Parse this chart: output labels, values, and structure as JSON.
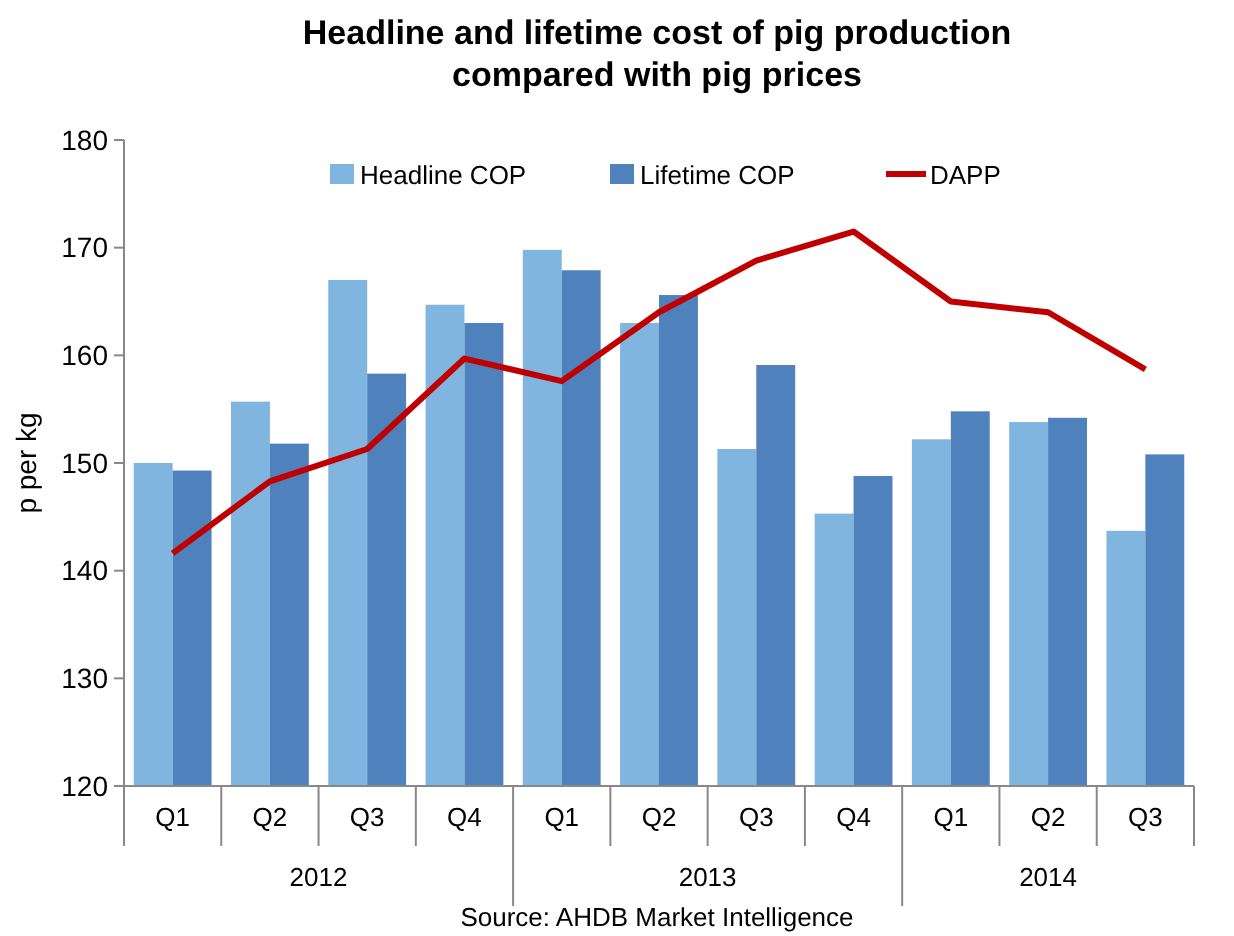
{
  "chart_data": {
    "type": "bar",
    "title": "Headline and lifetime cost of pig production compared with pig prices",
    "ylabel": "p per kg",
    "categories": [
      "Q1",
      "Q2",
      "Q3",
      "Q4",
      "Q1",
      "Q2",
      "Q3",
      "Q4",
      "Q1",
      "Q2",
      "Q3"
    ],
    "series": [
      {
        "name": "Headline COP",
        "color": "#7fb5de",
        "values": [
          150,
          155.7,
          167,
          164.7,
          169.8,
          163,
          151.3,
          145.3,
          152.2,
          153.8,
          143.7
        ]
      },
      {
        "name": "Lifetime COP",
        "color": "#4f81bd",
        "values": [
          149.3,
          151.8,
          158.3,
          163,
          167.9,
          165.6,
          159.1,
          148.8,
          154.8,
          154.2,
          150.8
        ]
      },
      {
        "name": "DAPP",
        "type": "line",
        "color": "#c00000",
        "values": [
          141.6,
          148.3,
          151.3,
          159.7,
          157.6,
          164,
          168.8,
          171.5,
          165,
          164,
          158.7
        ]
      }
    ],
    "ylim": [
      120,
      180
    ],
    "yticks": [
      120,
      130,
      140,
      150,
      160,
      170,
      180
    ],
    "grid": false,
    "legend": "top",
    "annotations": [
      "2012",
      "2013",
      "2014",
      "Source: AHDB Market Intelligence"
    ]
  }
}
